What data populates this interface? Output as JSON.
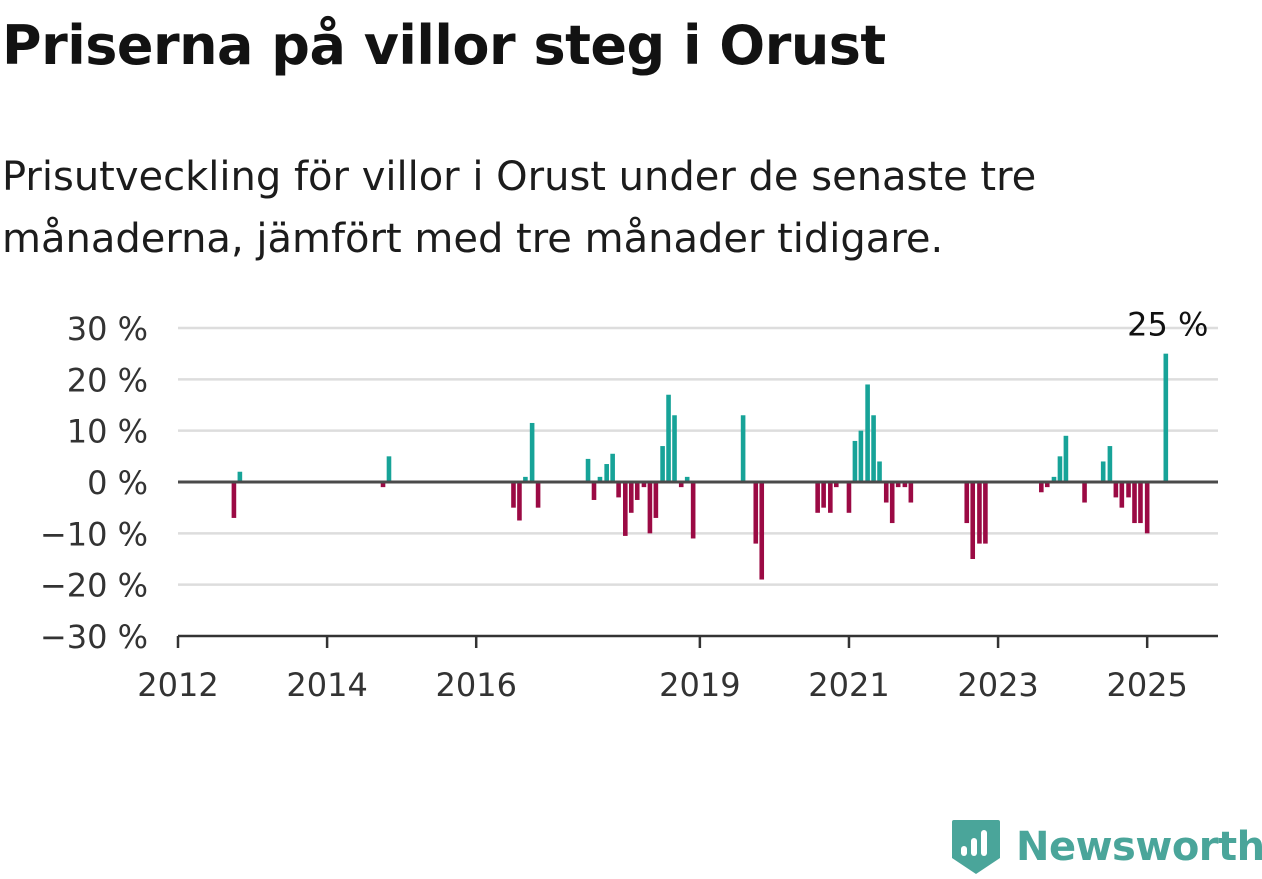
{
  "title": "Priserna på villor steg i Orust",
  "subtitle": "Prisutveckling för villor i Orust under de senaste tre månaderna, jämfört med tre månader tidigare.",
  "brand": {
    "name": "Newsworthy",
    "color": "#4aa59a",
    "icon": "newsworthy-logo-icon"
  },
  "colors": {
    "positive": "#17a398",
    "negative": "#9b0a44",
    "grid": "#dddddd",
    "axis": "#4a4a4a"
  },
  "chart_data": {
    "type": "bar",
    "ylim": [
      -30,
      30
    ],
    "yticks": [
      30,
      20,
      10,
      0,
      -10,
      -20,
      -30
    ],
    "ytick_labels": [
      "30 %",
      "20 %",
      "10 %",
      "0 %",
      "−10 %",
      "−20 %",
      "−30 %"
    ],
    "xlim": [
      2012.0,
      2025.95
    ],
    "xticks": [
      2012,
      2014,
      2016,
      2019,
      2021,
      2023,
      2025
    ],
    "xtick_labels": [
      "2012",
      "2014",
      "2016",
      "2019",
      "2021",
      "2023",
      "2025"
    ],
    "grid": true,
    "annotations": [
      {
        "x": 2025.25,
        "y": 25,
        "text": "25 %"
      }
    ],
    "series": [
      {
        "x": [
          2012.75,
          2012.83,
          2014.75,
          2014.83,
          2016.5,
          2016.58,
          2016.66,
          2016.75,
          2016.83,
          2017.5,
          2017.58,
          2017.66,
          2017.75,
          2017.83,
          2017.91,
          2018.0,
          2018.08,
          2018.16,
          2018.25,
          2018.33,
          2018.41,
          2018.5,
          2018.58,
          2018.66,
          2018.75,
          2018.83,
          2018.91,
          2019.58,
          2019.75,
          2019.83,
          2020.58,
          2020.66,
          2020.75,
          2020.83,
          2021.0,
          2021.08,
          2021.16,
          2021.25,
          2021.33,
          2021.41,
          2021.5,
          2021.58,
          2021.66,
          2021.75,
          2021.83,
          2022.58,
          2022.66,
          2022.75,
          2022.83,
          2023.58,
          2023.66,
          2023.75,
          2023.83,
          2023.91,
          2024.16,
          2024.41,
          2024.5,
          2024.58,
          2024.66,
          2024.75,
          2024.83,
          2024.91,
          2025.0,
          2025.25
        ],
        "values": [
          -7,
          2,
          -1,
          5,
          -5,
          -7.5,
          1,
          11.5,
          -5,
          4.5,
          -3.5,
          1,
          3.5,
          5.5,
          -3,
          -10.5,
          -6,
          -3.5,
          -1,
          -10,
          -7,
          7,
          17,
          13,
          -1,
          1,
          -11,
          13,
          -12,
          -19,
          -6,
          -5,
          -6,
          -1,
          -6,
          8,
          10,
          19,
          13,
          4,
          -4,
          -8,
          -1,
          -1,
          -4,
          -8,
          -15,
          -12,
          -12,
          -2,
          -1,
          1,
          5,
          9,
          -4,
          4,
          7,
          -3,
          -5,
          -3,
          -8,
          -8,
          -10,
          25
        ]
      }
    ]
  }
}
